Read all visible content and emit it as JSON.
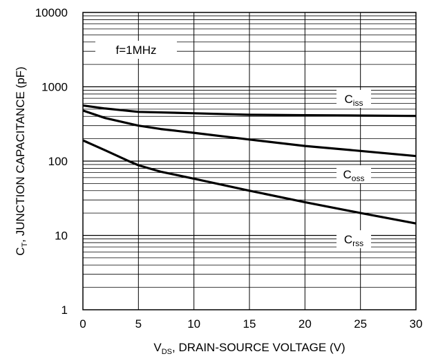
{
  "chart_data": {
    "type": "line",
    "xlabel": {
      "main": "V",
      "sub": "DS",
      "rest": ", DRAIN-SOURCE VOLTAGE (V)"
    },
    "ylabel": {
      "main": "C",
      "sub": "T",
      "rest": ", JUNCTION CAPACITANCE (pF)"
    },
    "xlim": [
      0,
      30
    ],
    "ylim": [
      1,
      10000
    ],
    "yscale": "log",
    "grid": true,
    "x_ticks": [
      "0",
      "5",
      "10",
      "15",
      "20",
      "25",
      "30"
    ],
    "y_ticks": [
      "1",
      "10",
      "100",
      "1000",
      "10000"
    ],
    "annotation": "f=1MHz",
    "series": [
      {
        "id": "ciss",
        "name_main": "C",
        "name_sub": "iss",
        "x": [
          0,
          2,
          5,
          10,
          15,
          20,
          25,
          30
        ],
        "y": [
          560,
          510,
          460,
          440,
          420,
          415,
          410,
          405
        ]
      },
      {
        "id": "coss",
        "name_main": "C",
        "name_sub": "oss",
        "x": [
          0,
          2,
          5,
          7,
          10,
          15,
          20,
          25,
          30
        ],
        "y": [
          480,
          380,
          300,
          270,
          240,
          195,
          160,
          137,
          117
        ]
      },
      {
        "id": "crss",
        "name_main": "C",
        "name_sub": "rss",
        "x": [
          0,
          2,
          4,
          5,
          7,
          10,
          15,
          20,
          25,
          30
        ],
        "y": [
          190,
          140,
          102,
          88,
          72,
          58,
          40,
          28,
          20,
          14.5
        ]
      }
    ]
  }
}
